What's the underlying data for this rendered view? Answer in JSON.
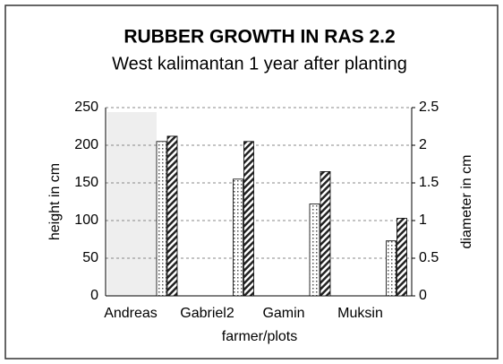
{
  "chart_data": {
    "type": "bar",
    "title": "RUBBER GROWTH IN RAS 2.2",
    "subtitle": "West kalimantan 1 year after planting",
    "xlabel": "farmer/plots",
    "ylabel": "height in cm",
    "y2label": "diameter in cm",
    "categories": [
      "Andreas",
      "Gabriel2",
      "Gamin",
      "Muksin"
    ],
    "series": [
      {
        "color": "#000000",
        "values": [
          205,
          155,
          122,
          73
        ]
      },
      {
        "color": "#000000",
        "axis": "y2",
        "values": [
          2.12,
          2.05,
          1.65,
          1.03
        ]
      }
    ],
    "ylim": [
      0,
      250
    ],
    "yticks": [
      0,
      50,
      100,
      150,
      200,
      250
    ],
    "y2lim": [
      0,
      2.5
    ],
    "y2ticks": [
      0,
      0.5,
      1,
      1.5,
      2,
      2.5
    ],
    "grid": true
  }
}
